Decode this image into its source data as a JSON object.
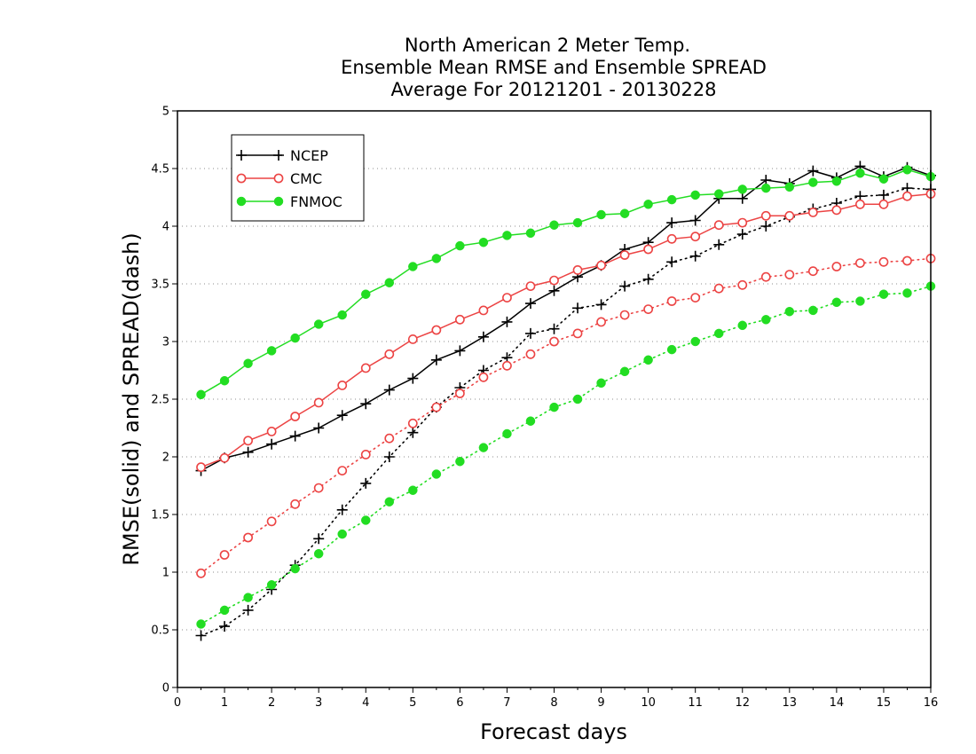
{
  "chart_data": {
    "type": "line",
    "title": [
      "North American 2 Meter Temp.",
      "Ensemble Mean RMSE and Ensemble SPREAD",
      "Average For 20121201 - 20130228"
    ],
    "xlabel": "Forecast days",
    "ylabel": "RMSE(solid) and SPREAD(dash)",
    "xlim": [
      0,
      16
    ],
    "ylim": [
      0,
      5
    ],
    "xticks": [
      "0",
      "1",
      "2",
      "3",
      "4",
      "5",
      "6",
      "7",
      "8",
      "9",
      "10",
      "11",
      "12",
      "13",
      "14",
      "15",
      "16"
    ],
    "yticks": [
      "0",
      "0.5",
      "1",
      "1.5",
      "2",
      "2.5",
      "3",
      "3.5",
      "4",
      "4.5",
      "5"
    ],
    "grid": "horizontal dotted",
    "legend_position": "top-left",
    "x": [
      0.5,
      1,
      1.5,
      2,
      2.5,
      3,
      3.5,
      4,
      4.5,
      5,
      5.5,
      6,
      6.5,
      7,
      7.5,
      8,
      8.5,
      9,
      9.5,
      10,
      10.5,
      11,
      11.5,
      12,
      12.5,
      13,
      13.5,
      14,
      14.5,
      15,
      15.5,
      16
    ],
    "series": [
      {
        "name": "NCEP",
        "color": "#000000",
        "marker": "plus",
        "rmse": [
          1.88,
          1.99,
          2.04,
          2.11,
          2.18,
          2.25,
          2.36,
          2.46,
          2.58,
          2.68,
          2.84,
          2.92,
          3.04,
          3.17,
          3.33,
          3.44,
          3.56,
          3.66,
          3.8,
          3.86,
          4.03,
          4.05,
          4.24,
          4.24,
          4.4,
          4.37,
          4.48,
          4.42,
          4.52,
          4.43,
          4.51,
          4.44
        ],
        "spread": [
          0.45,
          0.53,
          0.67,
          0.85,
          1.06,
          1.29,
          1.54,
          1.77,
          2.0,
          2.21,
          2.43,
          2.6,
          2.75,
          2.86,
          3.07,
          3.11,
          3.29,
          3.32,
          3.48,
          3.54,
          3.69,
          3.74,
          3.84,
          3.93,
          4.0,
          4.08,
          4.15,
          4.2,
          4.26,
          4.27,
          4.33,
          4.32
        ]
      },
      {
        "name": "CMC",
        "color": "#ec4444",
        "marker": "open-circle",
        "rmse": [
          1.91,
          1.99,
          2.14,
          2.22,
          2.35,
          2.47,
          2.62,
          2.77,
          2.89,
          3.02,
          3.1,
          3.19,
          3.27,
          3.38,
          3.48,
          3.53,
          3.62,
          3.66,
          3.75,
          3.8,
          3.89,
          3.91,
          4.01,
          4.03,
          4.09,
          4.09,
          4.12,
          4.14,
          4.19,
          4.19,
          4.26,
          4.28
        ],
        "spread": [
          0.99,
          1.15,
          1.3,
          1.44,
          1.59,
          1.73,
          1.88,
          2.02,
          2.16,
          2.29,
          2.43,
          2.55,
          2.69,
          2.79,
          2.89,
          3.0,
          3.07,
          3.17,
          3.23,
          3.28,
          3.35,
          3.38,
          3.46,
          3.49,
          3.56,
          3.58,
          3.61,
          3.65,
          3.68,
          3.69,
          3.7,
          3.72
        ]
      },
      {
        "name": "FNMOC",
        "color": "#22dd22",
        "marker": "filled-circle",
        "rmse": [
          2.54,
          2.66,
          2.81,
          2.92,
          3.03,
          3.15,
          3.23,
          3.41,
          3.51,
          3.65,
          3.72,
          3.83,
          3.86,
          3.92,
          3.94,
          4.01,
          4.03,
          4.1,
          4.11,
          4.19,
          4.23,
          4.27,
          4.28,
          4.32,
          4.33,
          4.34,
          4.38,
          4.39,
          4.46,
          4.41,
          4.49,
          4.43
        ],
        "spread": [
          0.55,
          0.67,
          0.78,
          0.89,
          1.03,
          1.16,
          1.33,
          1.45,
          1.61,
          1.71,
          1.85,
          1.96,
          2.08,
          2.2,
          2.31,
          2.43,
          2.5,
          2.64,
          2.74,
          2.84,
          2.93,
          3.0,
          3.07,
          3.14,
          3.19,
          3.26,
          3.27,
          3.34,
          3.35,
          3.41,
          3.42,
          3.48
        ]
      }
    ]
  }
}
